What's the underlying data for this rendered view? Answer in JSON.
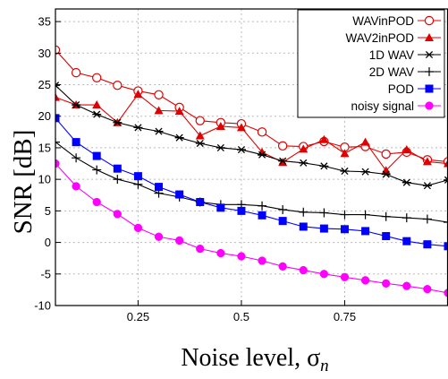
{
  "chart_data": {
    "type": "line",
    "title": "",
    "xlabel": "Noise level, σ",
    "xlabel_sub": "n",
    "ylabel": "SNR [dB]",
    "xlim": [
      0.05,
      1.0
    ],
    "ylim": [
      -10,
      37
    ],
    "xticks": [
      0.25,
      0.5,
      0.75
    ],
    "xtick_labels": [
      "0.25",
      "0.5",
      "0.75"
    ],
    "yticks": [
      -10,
      -5,
      0,
      5,
      10,
      15,
      20,
      25,
      30,
      35
    ],
    "ytick_labels": [
      "-10",
      "-5",
      "0",
      "5",
      "10",
      "15",
      "20",
      "25",
      "30",
      "35"
    ],
    "grid": true,
    "legend_position": "top-right",
    "x": [
      0.05,
      0.1,
      0.15,
      0.2,
      0.25,
      0.3,
      0.35,
      0.4,
      0.45,
      0.5,
      0.55,
      0.6,
      0.65,
      0.7,
      0.75,
      0.8,
      0.85,
      0.9,
      0.95,
      1.0
    ],
    "series": [
      {
        "name": "WAVinPOD",
        "color": "#e00000",
        "marker": "open-circle",
        "values": [
          30.5,
          26.9,
          26.1,
          24.9,
          24.0,
          23.4,
          21.4,
          19.3,
          19.0,
          18.8,
          17.5,
          15.3,
          15.2,
          16.0,
          15.1,
          15.2,
          14.0,
          14.3,
          13.1,
          12.8
        ]
      },
      {
        "name": "WAV2inPOD",
        "color": "#e00000",
        "marker": "filled-triangle",
        "values": [
          23.0,
          21.8,
          21.8,
          19.0,
          23.5,
          20.9,
          20.8,
          16.9,
          18.4,
          18.2,
          14.3,
          12.7,
          14.8,
          16.3,
          14.1,
          15.9,
          11.4,
          14.7,
          12.8,
          12.5
        ]
      },
      {
        "name": "1D WAV",
        "color": "#000000",
        "marker": "asterisk",
        "values": [
          24.9,
          21.8,
          20.3,
          19.0,
          18.2,
          17.6,
          16.6,
          15.7,
          15.0,
          14.7,
          13.9,
          12.9,
          12.6,
          12.1,
          11.3,
          11.2,
          10.8,
          9.5,
          9.0,
          9.9
        ]
      },
      {
        "name": "2D WAV",
        "color": "#000000",
        "marker": "plus",
        "values": [
          15.9,
          13.4,
          11.5,
          10.0,
          9.2,
          7.8,
          7.2,
          6.4,
          6.0,
          6.0,
          5.8,
          5.2,
          4.8,
          4.7,
          4.4,
          4.4,
          4.1,
          3.9,
          3.7,
          3.2
        ]
      },
      {
        "name": "POD",
        "color": "#0000ff",
        "marker": "filled-square",
        "values": [
          19.7,
          15.9,
          13.7,
          11.7,
          10.5,
          8.8,
          7.6,
          6.4,
          5.5,
          5.0,
          4.3,
          3.4,
          2.5,
          2.2,
          2.1,
          1.8,
          1.0,
          0.2,
          -0.3,
          -0.6
        ]
      },
      {
        "name": "noisy signal",
        "color": "#ff00ff",
        "marker": "filled-circle",
        "values": [
          12.5,
          8.9,
          6.4,
          4.5,
          2.3,
          0.9,
          0.3,
          -1.0,
          -1.7,
          -2.2,
          -2.9,
          -3.8,
          -4.4,
          -5.0,
          -5.5,
          -6.0,
          -6.5,
          -6.9,
          -7.4,
          -8.0
        ]
      }
    ]
  }
}
